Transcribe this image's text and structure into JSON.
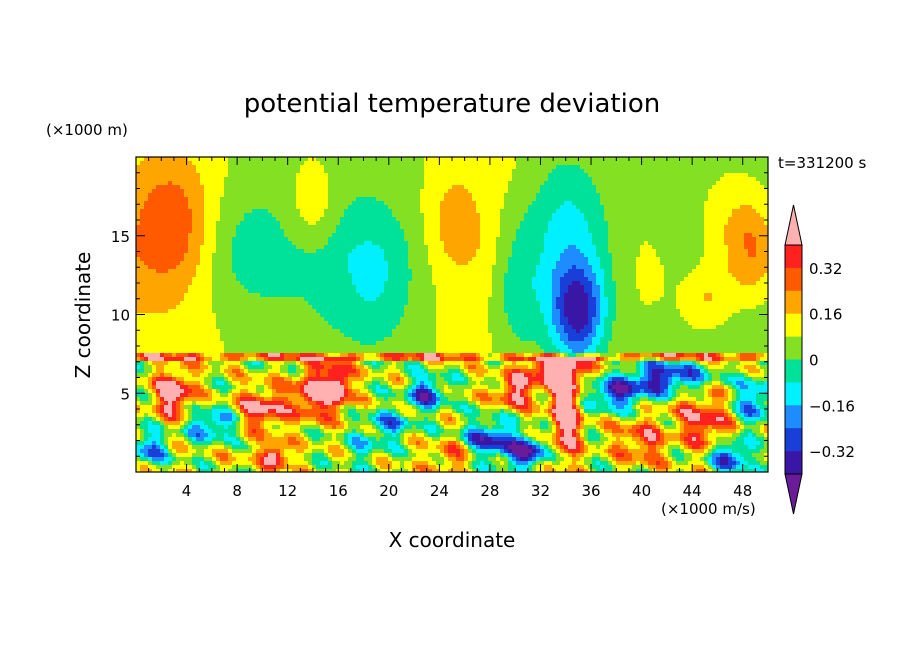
{
  "chart_data": {
    "type": "heatmap",
    "title": "potential temperature deviation",
    "xlabel": "X coordinate",
    "ylabel": "Z coordinate",
    "x_unit": "(×1000 m/s)",
    "y_unit": "(×1000 m)",
    "time_label": "t=331200 s",
    "xlim": [
      0,
      50
    ],
    "ylim": [
      0,
      20
    ],
    "x_ticks": [
      "4",
      "8",
      "12",
      "16",
      "20",
      "24",
      "28",
      "32",
      "36",
      "40",
      "44",
      "48"
    ],
    "x_tick_values": [
      4,
      8,
      12,
      16,
      20,
      24,
      28,
      32,
      36,
      40,
      44,
      48
    ],
    "y_ticks": [
      "5",
      "10",
      "15"
    ],
    "y_tick_values": [
      5,
      10,
      15
    ],
    "colorbar": {
      "min": -0.48,
      "max": 0.48,
      "step": 0.08,
      "labels": [
        "0.32",
        "0.16",
        "0",
        "−0.16",
        "−0.32"
      ],
      "label_values": [
        0.32,
        0.16,
        0,
        -0.16,
        -0.32
      ],
      "extend": "both",
      "colors": [
        "#6a1b9a",
        "#3a16a6",
        "#1a3fd8",
        "#1d8cff",
        "#00f0ff",
        "#00e29a",
        "#84e022",
        "#ffff00",
        "#ffa500",
        "#ff5a00",
        "#ff2020",
        "#ffb0b0"
      ]
    },
    "grid": false,
    "legend": "colorbar-right"
  }
}
